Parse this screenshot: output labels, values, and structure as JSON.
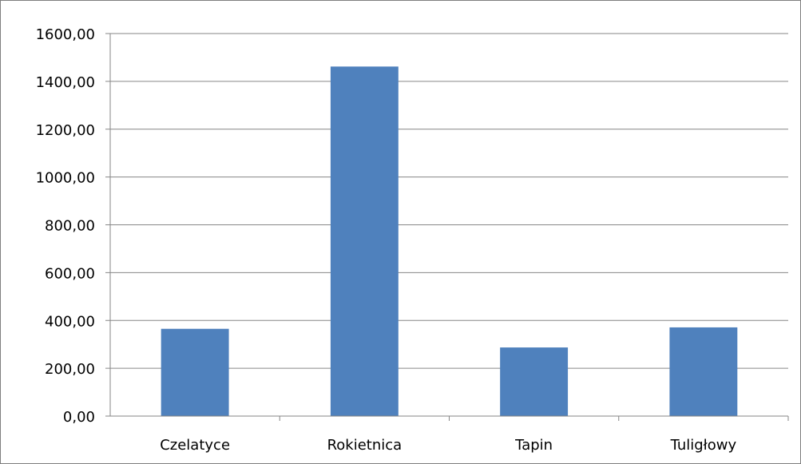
{
  "chart_data": {
    "type": "bar",
    "categories": [
      "Czelatyce",
      "Rokietnica",
      "Tapin",
      "Tuligłowy"
    ],
    "values": [
      365,
      1462,
      287,
      371
    ],
    "ylim": [
      0,
      1600
    ],
    "yticks": [
      "0,00",
      "200,00",
      "400,00",
      "600,00",
      "800,00",
      "1000,00",
      "1200,00",
      "1400,00",
      "1600,00"
    ],
    "grid": true,
    "legend": "none",
    "bar_color": "#4F81BD",
    "grid_color": "#868686"
  }
}
